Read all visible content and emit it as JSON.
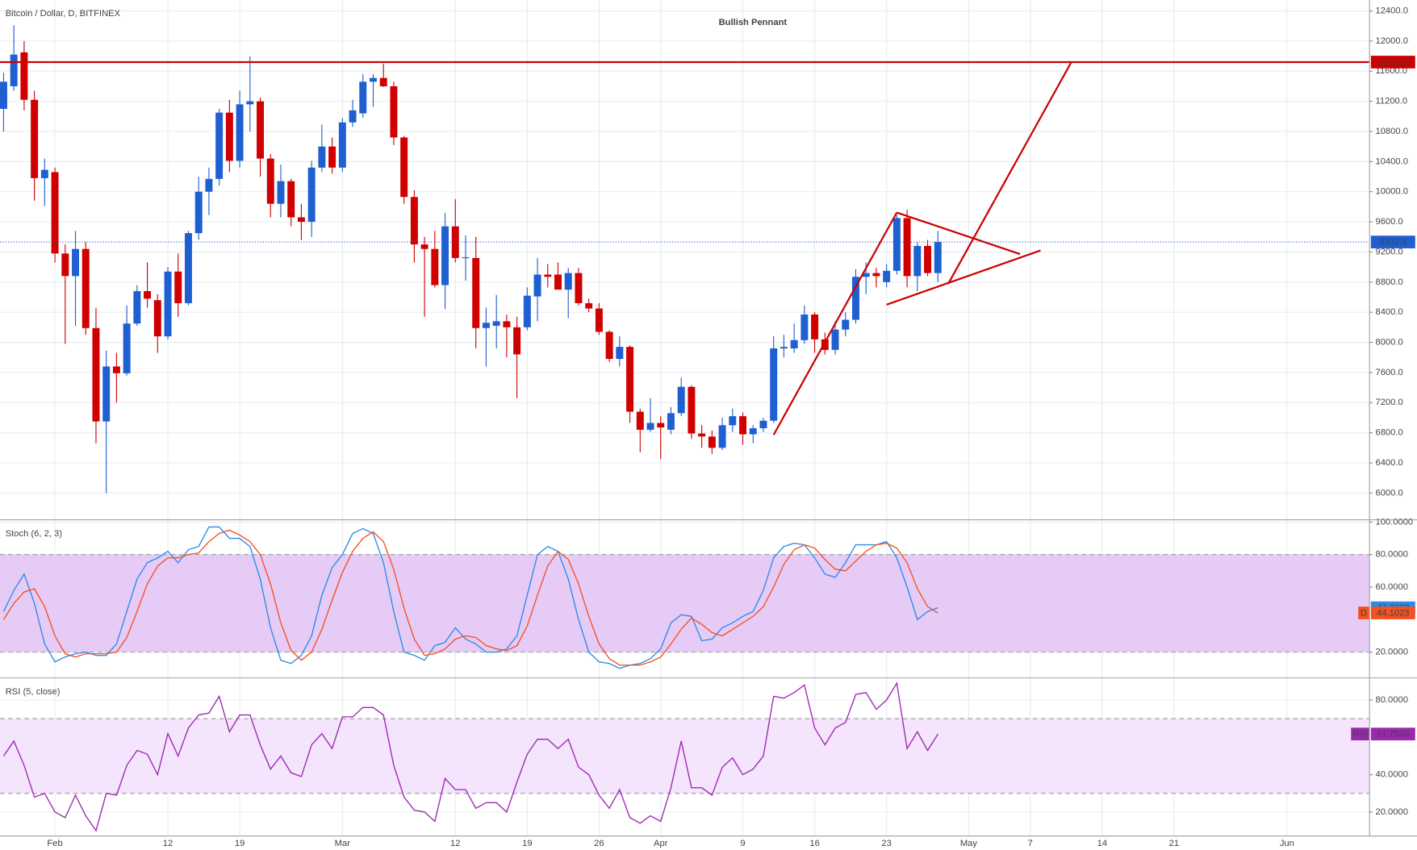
{
  "chart_data": [
    {
      "type": "candlestick",
      "title": "Bitcoin / Dollar, D, BITFINEX",
      "annotation": "Bullish Pennant",
      "x": [
        0,
        1,
        2,
        3,
        4,
        5,
        6,
        7,
        8,
        9,
        10,
        11,
        12,
        13,
        14,
        15,
        16,
        17,
        18,
        19,
        20,
        21,
        22,
        23,
        24,
        25,
        26,
        27,
        28,
        29,
        30,
        31,
        32,
        33,
        34,
        35,
        36,
        37,
        38,
        39,
        40,
        41,
        42,
        43,
        44,
        45,
        46,
        47,
        48,
        49,
        50,
        51,
        52,
        53,
        54,
        55,
        56,
        57,
        58,
        59,
        60,
        61,
        62,
        63,
        64,
        65,
        66,
        67,
        68,
        69,
        70,
        71,
        72,
        73,
        74,
        75,
        76,
        77,
        78,
        79,
        80,
        81,
        82,
        83,
        84,
        85,
        86,
        87,
        88,
        89,
        90,
        91
      ],
      "open": [
        11100,
        11400,
        11850,
        11220,
        10180,
        10260,
        9180,
        8880,
        9240,
        8190,
        6950,
        7680,
        7590,
        8250,
        8680,
        8560,
        8080,
        8940,
        8520,
        9450,
        10000,
        10170,
        11050,
        10410,
        11160,
        11200,
        10440,
        9840,
        10140,
        9660,
        9600,
        10320,
        10600,
        10320,
        10920,
        11040,
        11460,
        11510,
        11400,
        10720,
        9930,
        9300,
        9240,
        8760,
        9540,
        9120,
        9120,
        8190,
        8220,
        8280,
        8200,
        8200,
        8610,
        8900,
        8900,
        8700,
        8920,
        8520,
        8450,
        8140,
        7780,
        7940,
        7080,
        6840,
        6930,
        6840,
        7060,
        7410,
        6790,
        6750,
        6600,
        6900,
        7020,
        6780,
        6860,
        6960,
        7920,
        7920,
        8030,
        8370,
        8040,
        7900,
        8170,
        8300,
        8870,
        8920,
        8800,
        8950,
        9650,
        8880,
        9280,
        8920
      ],
      "high": [
        11580,
        12210,
        12000,
        11340,
        10440,
        10320,
        9300,
        9480,
        9330,
        8460,
        7890,
        7860,
        8490,
        8760,
        9060,
        8640,
        9000,
        9180,
        9480,
        10200,
        10320,
        11100,
        11220,
        11340,
        11800,
        11250,
        10500,
        10360,
        10170,
        9840,
        10410,
        10890,
        10720,
        10980,
        11220,
        11560,
        11560,
        11700,
        11460,
        10740,
        10020,
        9400,
        9480,
        9720,
        9900,
        9420,
        9400,
        8460,
        8630,
        8370,
        8340,
        8730,
        9120,
        9040,
        9060,
        8990,
        8990,
        8580,
        8520,
        8160,
        8080,
        7960,
        7120,
        7260,
        7020,
        7140,
        7530,
        7430,
        6900,
        6830,
        7000,
        7120,
        7070,
        6900,
        7000,
        8080,
        8100,
        8250,
        8490,
        8400,
        8130,
        8280,
        8400,
        8970,
        9060,
        8990,
        9040,
        9690,
        9760,
        9330,
        9360,
        9480
      ],
      "low": [
        10800,
        11340,
        11080,
        9880,
        9810,
        9060,
        7980,
        8220,
        8100,
        6660,
        6000,
        7200,
        7560,
        8220,
        8460,
        7860,
        8040,
        8340,
        8490,
        9360,
        9690,
        10080,
        10260,
        10320,
        10800,
        10200,
        9660,
        9660,
        9540,
        9360,
        9400,
        10260,
        10240,
        10260,
        10860,
        10980,
        11130,
        11390,
        10620,
        9840,
        9060,
        8340,
        8730,
        8440,
        9060,
        8820,
        7920,
        7680,
        7920,
        7800,
        7260,
        8160,
        8280,
        8730,
        8700,
        8320,
        8490,
        8400,
        8100,
        7740,
        7680,
        6930,
        6540,
        6810,
        6450,
        6780,
        7020,
        6720,
        6600,
        6520,
        6570,
        6810,
        6640,
        6660,
        6810,
        6930,
        7800,
        7860,
        7980,
        7860,
        7840,
        7840,
        8080,
        8250,
        8640,
        8730,
        8730,
        8900,
        8730,
        8680,
        8880,
        8800
      ],
      "close": [
        11460,
        11820,
        11220,
        10180,
        10290,
        9180,
        8880,
        9240,
        8190,
        6950,
        7680,
        7590,
        8250,
        8680,
        8580,
        8080,
        8940,
        8520,
        9450,
        10000,
        10170,
        11050,
        10410,
        11160,
        11200,
        10440,
        9840,
        10140,
        9660,
        9600,
        10320,
        10600,
        10320,
        10920,
        11080,
        11460,
        11510,
        11400,
        10720,
        9930,
        9300,
        9240,
        8760,
        9540,
        9120,
        9130,
        8190,
        8260,
        8280,
        8200,
        7840,
        8620,
        8900,
        8870,
        8700,
        8920,
        8520,
        8450,
        8140,
        7780,
        7940,
        7080,
        6840,
        6930,
        6870,
        7060,
        7410,
        6790,
        6750,
        6600,
        6900,
        7020,
        6780,
        6860,
        6960,
        7920,
        7940,
        8030,
        8370,
        8040,
        7900,
        8170,
        8300,
        8870,
        8920,
        8880,
        8950,
        9650,
        8880,
        9280,
        8920,
        9332.4
      ],
      "up_color": "#1e5fd2",
      "down_color": "#d00000",
      "xlim": [
        -0.35,
        133
      ],
      "xticks": [
        {
          "value": 5,
          "label": "Feb"
        },
        {
          "value": 16,
          "label": "12"
        },
        {
          "value": 23,
          "label": "19"
        },
        {
          "value": 33,
          "label": "Mar"
        },
        {
          "value": 44,
          "label": "12"
        },
        {
          "value": 51,
          "label": "19"
        },
        {
          "value": 58,
          "label": "26"
        },
        {
          "value": 64,
          "label": "Apr"
        },
        {
          "value": 72,
          "label": "9"
        },
        {
          "value": 79,
          "label": "16"
        },
        {
          "value": 86,
          "label": "23"
        },
        {
          "value": 94,
          "label": "May"
        },
        {
          "value": 100,
          "label": "7"
        },
        {
          "value": 107,
          "label": "14"
        },
        {
          "value": 114,
          "label": "21"
        },
        {
          "value": 125,
          "label": "Jun"
        }
      ],
      "ylim": [
        5650,
        12545
      ],
      "yticks": [
        {
          "value": 12400,
          "label": "12400.0"
        },
        {
          "value": 12000,
          "label": "12000.0"
        },
        {
          "value": 11600,
          "label": "11600.0"
        },
        {
          "value": 11200,
          "label": "11200.0"
        },
        {
          "value": 10800,
          "label": "10800.0"
        },
        {
          "value": 10400,
          "label": "10400.0"
        },
        {
          "value": 10000,
          "label": "10000.0"
        },
        {
          "value": 9600,
          "label": "9600.0"
        },
        {
          "value": 9200,
          "label": "9200.0"
        },
        {
          "value": 8800,
          "label": "8800.0"
        },
        {
          "value": 8400,
          "label": "8400.0"
        },
        {
          "value": 8000,
          "label": "8000.0"
        },
        {
          "value": 7600,
          "label": "7600.0"
        },
        {
          "value": 7200,
          "label": "7200.0"
        },
        {
          "value": 6800,
          "label": "6800.0"
        },
        {
          "value": 6400,
          "label": "6400.0"
        },
        {
          "value": 6000,
          "label": "6000.0"
        }
      ],
      "grid": true,
      "resistance": {
        "value": 11721,
        "label": "11721.0"
      },
      "drawing_color": "#cc0000",
      "drawings": [
        {
          "x": [
            75,
            87
          ],
          "y": [
            6772,
            9724
          ]
        },
        {
          "x": [
            87,
            99
          ],
          "y": [
            9724,
            9172
          ]
        },
        {
          "x": [
            86,
            101
          ],
          "y": [
            8500,
            9220
          ]
        },
        {
          "x": [
            92,
            104
          ],
          "y": [
            8776,
            11721
          ]
        }
      ]
    },
    {
      "type": "line",
      "title": "Stoch (6, 2, 3)",
      "series": [
        {
          "color": "#2a8be6",
          "values": [
            45,
            58,
            68,
            50,
            25,
            14,
            17,
            19,
            20,
            18,
            18,
            25,
            45,
            65,
            75,
            78,
            82,
            75,
            83,
            85,
            97,
            97,
            90,
            90,
            85,
            65,
            35,
            15,
            13,
            18,
            30,
            55,
            72,
            80,
            93,
            96,
            93,
            75,
            45,
            20,
            18,
            15,
            24,
            26,
            35,
            28,
            25,
            20,
            20,
            22,
            30,
            55,
            80,
            85,
            82,
            65,
            40,
            20,
            14,
            13,
            10,
            12,
            13,
            16,
            22,
            38,
            43,
            42,
            27,
            28,
            35,
            38,
            42,
            45,
            58,
            78,
            85,
            87,
            86,
            78,
            68,
            66,
            75,
            86,
            86,
            86,
            88,
            78,
            60,
            40,
            45,
            47.2693
          ]
        },
        {
          "color": "#f4511e",
          "value_tag": "D",
          "values": [
            40,
            50,
            57,
            59,
            48,
            30,
            19,
            17,
            19,
            19,
            19,
            20,
            29,
            45,
            62,
            73,
            78,
            78,
            80,
            81,
            88,
            93,
            95,
            92,
            88,
            80,
            62,
            38,
            21,
            15,
            20,
            34,
            52,
            69,
            82,
            90,
            94,
            88,
            71,
            47,
            28,
            18,
            19,
            22,
            28,
            30,
            29,
            24,
            22,
            21,
            24,
            36,
            55,
            73,
            82,
            77,
            62,
            42,
            25,
            16,
            12,
            12,
            12,
            14,
            17,
            25,
            34,
            41,
            37,
            32,
            30,
            34,
            38,
            42,
            48,
            60,
            74,
            83,
            86,
            84,
            77,
            71,
            70,
            76,
            82,
            86,
            87,
            84,
            75,
            59,
            48,
            44.1023
          ]
        }
      ],
      "ylim": [
        4.4,
        101.1
      ],
      "yticks": [
        {
          "value": 100,
          "label": "100.0000"
        },
        {
          "value": 80,
          "label": "80.0000"
        },
        {
          "value": 60,
          "label": "60.0000"
        },
        {
          "value": 20,
          "label": "20.0000"
        }
      ],
      "bands": [
        20,
        80
      ],
      "band_color": "#e6cbf7",
      "grid": true
    },
    {
      "type": "line",
      "title": "RSI (5, close)",
      "series": [
        {
          "name": "RSI",
          "color": "#9c27b0",
          "values": [
            50,
            58,
            45,
            28,
            30,
            20,
            17,
            29,
            18,
            10,
            30,
            29,
            45,
            53,
            51,
            40,
            62,
            50,
            65,
            72,
            73,
            82,
            63,
            72,
            72,
            56,
            43,
            50,
            41,
            39,
            56,
            62,
            54,
            71,
            71,
            76,
            76,
            72,
            45,
            28,
            21,
            20,
            15,
            38,
            32,
            32,
            22,
            25,
            25,
            20,
            36,
            51,
            59,
            59,
            54,
            59,
            44,
            40,
            29,
            22,
            32,
            17,
            14,
            18,
            15,
            33,
            58,
            33,
            33,
            29,
            44,
            49,
            40,
            43,
            50,
            82,
            81,
            84,
            88,
            65,
            56,
            65,
            68,
            83,
            84,
            75,
            80,
            89,
            54,
            63,
            53,
            61.7839
          ]
        }
      ],
      "ylim": [
        7.4,
        91.6
      ],
      "yticks": [
        {
          "value": 80,
          "label": "80.0000"
        },
        {
          "value": 40,
          "label": "40.0000"
        },
        {
          "value": 20,
          "label": "20.0000"
        }
      ],
      "bands": [
        30,
        70
      ],
      "band_color": "#f4e4fc",
      "grid": true
    }
  ]
}
